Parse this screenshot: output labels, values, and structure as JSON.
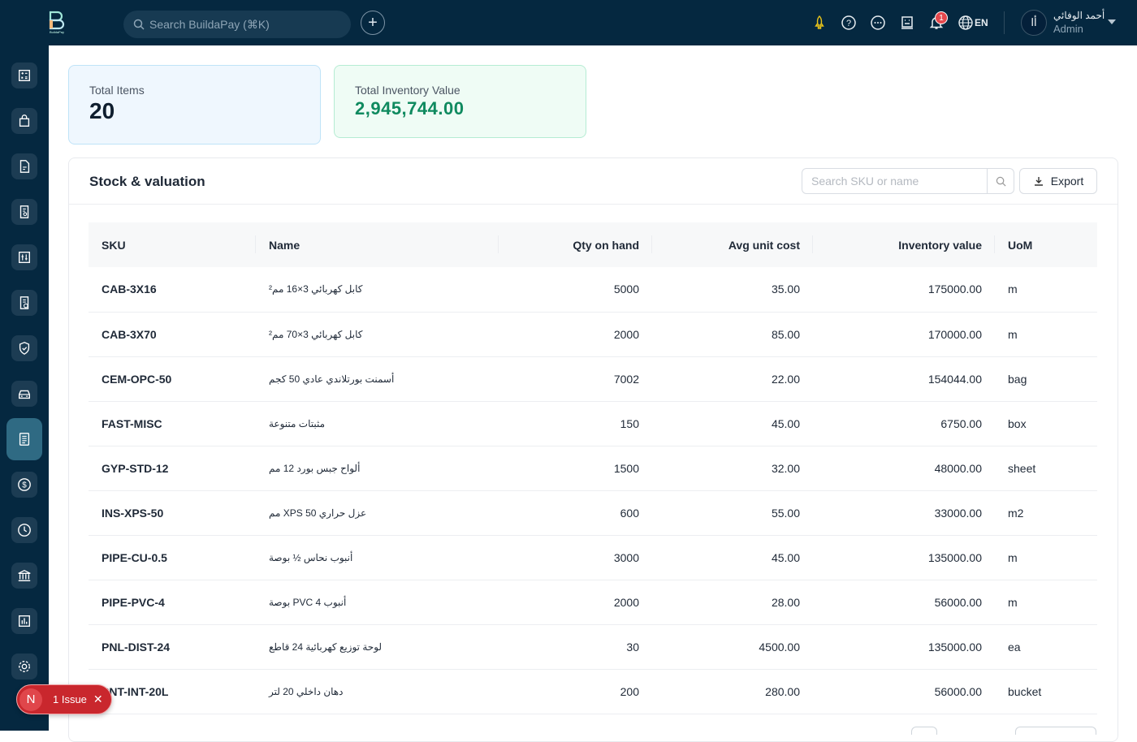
{
  "header": {
    "logo_text": "BuildaPay",
    "search_placeholder": "Search BuildaPay (⌘K)",
    "notification_count": "1",
    "language": "EN",
    "user_initials": "أا",
    "user_name": "أحمد الوفائي",
    "user_role": "Admin"
  },
  "sidebar": {
    "items": [
      {
        "icon": "calculator-icon"
      },
      {
        "icon": "shopping-bag-icon"
      },
      {
        "icon": "document-icon"
      },
      {
        "icon": "receipt-search-icon"
      },
      {
        "icon": "adjustments-icon"
      },
      {
        "icon": "document-check-icon"
      },
      {
        "icon": "shield-check-icon"
      },
      {
        "icon": "car-icon"
      },
      {
        "icon": "inventory-icon",
        "active": true
      },
      {
        "icon": "dollar-icon"
      },
      {
        "icon": "clock-icon"
      },
      {
        "icon": "bank-icon"
      },
      {
        "icon": "chart-icon"
      },
      {
        "icon": "settings-icon"
      }
    ]
  },
  "cards": {
    "total_items_label": "Total Items",
    "total_items_value": "20",
    "total_value_label": "Total Inventory Value",
    "total_value_value": "2,945,744.00"
  },
  "panel": {
    "title": "Stock & valuation",
    "search_placeholder": "Search SKU or name",
    "export_label": "Export"
  },
  "table": {
    "columns": [
      "SKU",
      "Name",
      "Qty on hand",
      "Avg unit cost",
      "Inventory value",
      "UoM"
    ],
    "rows": [
      [
        "CAB-3X16",
        "كابل كهربائي 3×16 مم²",
        "5000",
        "35.00",
        "175000.00",
        "m"
      ],
      [
        "CAB-3X70",
        "كابل كهربائي 3×70 مم²",
        "2000",
        "85.00",
        "170000.00",
        "m"
      ],
      [
        "CEM-OPC-50",
        "أسمنت بورتلاندي عادي 50 كجم",
        "7002",
        "22.00",
        "154044.00",
        "bag"
      ],
      [
        "FAST-MISC",
        "مثبتات متنوعة",
        "150",
        "45.00",
        "6750.00",
        "box"
      ],
      [
        "GYP-STD-12",
        "ألواح جبس بورد 12 مم",
        "1500",
        "32.00",
        "48000.00",
        "sheet"
      ],
      [
        "INS-XPS-50",
        "عزل حراري XPS 50 مم",
        "600",
        "55.00",
        "33000.00",
        "m2"
      ],
      [
        "PIPE-CU-0.5",
        "أنبوب نحاس ½ بوصة",
        "3000",
        "45.00",
        "135000.00",
        "m"
      ],
      [
        "PIPE-PVC-4",
        "أنبوب PVC 4 بوصة",
        "2000",
        "28.00",
        "56000.00",
        "m"
      ],
      [
        "PNL-DIST-24",
        "لوحة توزيع كهربائية 24 قاطع",
        "30",
        "4500.00",
        "135000.00",
        "ea"
      ],
      [
        "PNT-INT-20L",
        "دهان داخلي 20 لتر",
        "200",
        "280.00",
        "56000.00",
        "bucket"
      ]
    ]
  },
  "issue_badge": {
    "logo": "N",
    "label": "1 Issue"
  },
  "colors": {
    "topbar": "#052840",
    "accent_green": "#0f8a5f",
    "active_sidebar": "#2f6a83",
    "issue_red": "#c9272d"
  }
}
